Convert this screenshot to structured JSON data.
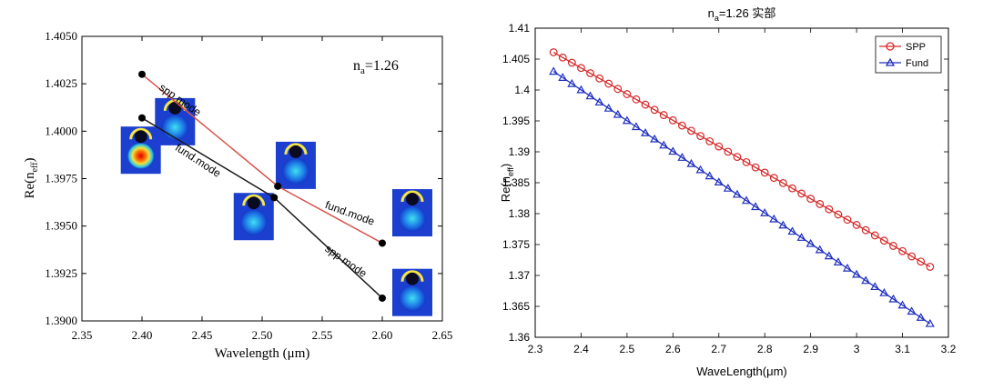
{
  "chart_data": [
    {
      "type": "line",
      "xlabel": "Wavelength (μm)",
      "ylabel_base": "Re(n",
      "ylabel_sub": "eff",
      "ylabel_end": ")",
      "annotation_base": "n",
      "annotation_sub": "a",
      "annotation_rest": "=1.26",
      "xlim": [
        2.35,
        2.65
      ],
      "ylim": [
        1.39,
        1.405
      ],
      "xticks": [
        2.35,
        2.4,
        2.45,
        2.5,
        2.55,
        2.6,
        2.65
      ],
      "xtick_labels": [
        "2.35",
        "2.40",
        "2.45",
        "2.50",
        "2.55",
        "2.60",
        "2.65"
      ],
      "yticks": [
        1.39,
        1.3925,
        1.395,
        1.3975,
        1.4,
        1.4025,
        1.405
      ],
      "ytick_labels": [
        "1.3900",
        "1.3925",
        "1.3950",
        "1.3975",
        "1.4000",
        "1.4025",
        "1.4050"
      ],
      "series": [
        {
          "color": "#d9534f",
          "x": [
            2.4,
            2.513,
            2.6
          ],
          "y": [
            1.403,
            1.3971,
            1.3941
          ]
        },
        {
          "color": "#1a1a1a",
          "x": [
            2.4,
            2.51,
            2.6
          ],
          "y": [
            1.4007,
            1.3965,
            1.3912
          ]
        }
      ],
      "line_labels": [
        {
          "text": "spp mode",
          "x": 2.43,
          "y": 1.4015,
          "rotate": 35
        },
        {
          "text": "fund.mode",
          "x": 2.445,
          "y": 1.3983,
          "rotate": 33
        },
        {
          "text": "fund.mode",
          "x": 2.572,
          "y": 1.3955,
          "rotate": 20
        },
        {
          "text": "spp mode",
          "x": 2.568,
          "y": 1.393,
          "rotate": 35
        }
      ],
      "insets": [
        {
          "x": 2.4275,
          "y": 1.4005,
          "bright": false
        },
        {
          "x": 2.399,
          "y": 1.399,
          "bright": true
        },
        {
          "x": 2.528,
          "y": 1.3982,
          "bright": false
        },
        {
          "x": 2.493,
          "y": 1.3955,
          "bright": false
        },
        {
          "x": 2.625,
          "y": 1.3957,
          "bright": false
        },
        {
          "x": 2.625,
          "y": 1.3915,
          "bright": false
        }
      ]
    },
    {
      "type": "line",
      "title_base": "n",
      "title_sub": "a",
      "title_rest": "=1.26 实部",
      "xlabel": "WaveLength(μm)",
      "ylabel_base": "Re(n",
      "ylabel_sub": "eff",
      "ylabel_end": ")",
      "xlim": [
        2.3,
        3.2
      ],
      "ylim": [
        1.36,
        1.41
      ],
      "xticks": [
        2.3,
        2.4,
        2.5,
        2.6,
        2.7,
        2.8,
        2.9,
        3.0,
        3.1,
        3.2
      ],
      "xtick_labels": [
        "2.3",
        "2.4",
        "2.5",
        "2.6",
        "2.7",
        "2.8",
        "2.9",
        "3",
        "3.1",
        "3.2"
      ],
      "yticks": [
        1.36,
        1.365,
        1.37,
        1.375,
        1.38,
        1.385,
        1.39,
        1.395,
        1.4,
        1.405,
        1.41
      ],
      "ytick_labels": [
        "1.36",
        "1.365",
        "1.37",
        "1.375",
        "1.38",
        "1.385",
        "1.39",
        "1.395",
        "1.4",
        "1.405",
        "1.41"
      ],
      "legend": "top-right",
      "series": [
        {
          "name": "SPP",
          "color": "#d62728",
          "marker": "circle",
          "x_start": 2.34,
          "x_end": 3.16,
          "count": 42,
          "y_start": 1.4061,
          "y_end": 1.3714
        },
        {
          "name": "Fund",
          "color": "#1f2fbf",
          "marker": "triangle",
          "x_start": 2.34,
          "x_end": 3.16,
          "count": 42,
          "y_start": 1.403,
          "y_end": 1.3622
        }
      ]
    }
  ]
}
